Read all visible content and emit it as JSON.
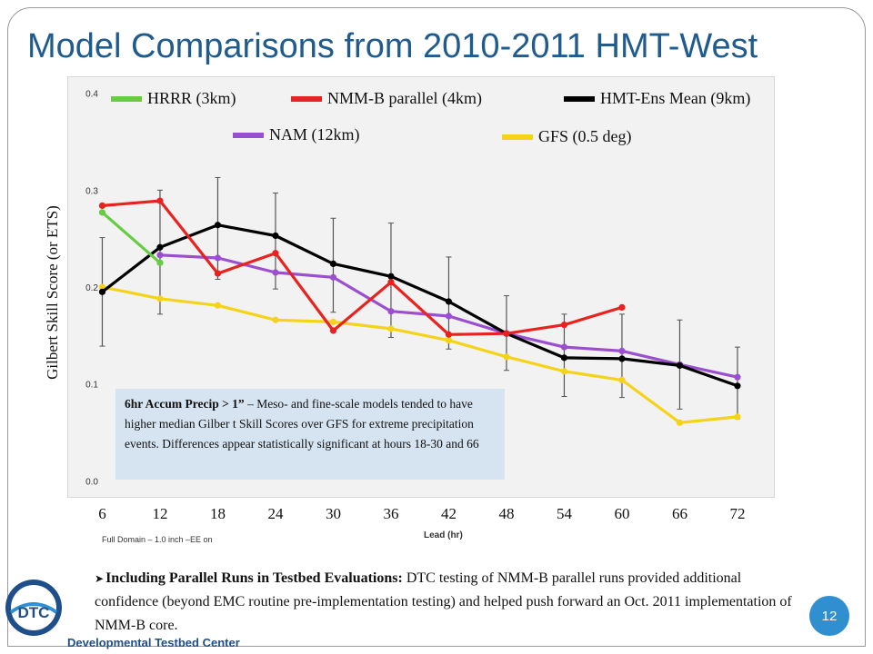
{
  "slide": {
    "title": "Model Comparisons from 2010-2011 HMT-West",
    "page_number": "12",
    "logo_text": "DTC",
    "logo_caption": "Developmental Testbed Center",
    "bullet_heading": "Including Parallel Runs in Testbed Evaluations:",
    "bullet_body": "DTC testing of NMM-B parallel runs provided additional confidence (beyond EMC routine pre-implementation testing) and helped push forward an Oct. 2011 implementation of NMM-B core.",
    "bullet_marker": "➤"
  },
  "chart_data": {
    "type": "line",
    "title": "",
    "xlabel": "Lead (hr)",
    "ylabel": "Gilbert Skill Score (or ETS)",
    "subtitle": "Full Domain – 1.0 inch –EE on",
    "x": [
      6,
      12,
      18,
      24,
      30,
      36,
      42,
      48,
      54,
      60,
      66,
      72
    ],
    "xlim": [
      3.5,
      75.5
    ],
    "ylim": [
      -0.01,
      0.41
    ],
    "yticks": [
      "0.0",
      "0.1",
      "0.2",
      "0.3",
      "0.4"
    ],
    "xtick_labels": [
      "6",
      "12",
      "18",
      "24",
      "30",
      "36",
      "42",
      "48",
      "54",
      "60",
      "66",
      "72"
    ],
    "legend_placement": "top",
    "series": [
      {
        "name": "HRRR (3km)",
        "color": "#66cc44",
        "x": [
          6,
          12
        ],
        "values": [
          0.277,
          0.225
        ]
      },
      {
        "name": "NMM-B parallel (4km)",
        "color": "#e8231f",
        "x": [
          6,
          12,
          18,
          24,
          30,
          36,
          42,
          48,
          54,
          60
        ],
        "values": [
          0.284,
          0.289,
          0.214,
          0.235,
          0.155,
          0.205,
          0.151,
          0.152,
          0.161,
          0.179
        ]
      },
      {
        "name": "HMT-Ens Mean (9km)",
        "color": "#000000",
        "x": [
          6,
          12,
          18,
          24,
          30,
          36,
          42,
          48,
          54,
          60,
          66,
          72
        ],
        "values": [
          0.195,
          0.241,
          0.264,
          0.253,
          0.224,
          0.211,
          0.185,
          0.152,
          0.127,
          0.126,
          0.119,
          0.098
        ],
        "error_low": [
          0.139,
          0.172,
          0.208,
          0.198,
          0.174,
          0.148,
          0.136,
          0.114,
          0.087,
          0.086,
          0.074,
          0.064
        ],
        "error_high": [
          0.251,
          0.3,
          0.313,
          0.297,
          0.271,
          0.266,
          0.231,
          0.191,
          0.172,
          0.172,
          0.166,
          0.138
        ]
      },
      {
        "name": "NAM (12km)",
        "color": "#9b4fcf",
        "x": [
          12,
          18,
          24,
          30,
          36,
          42,
          48,
          54,
          60,
          66,
          72
        ],
        "values": [
          0.233,
          0.23,
          0.215,
          0.21,
          0.175,
          0.17,
          0.152,
          0.138,
          0.134,
          0.12,
          0.107
        ]
      },
      {
        "name": "GFS (0.5 deg)",
        "color": "#f5d318",
        "x": [
          6,
          12,
          18,
          24,
          30,
          36,
          42,
          48,
          54,
          60,
          66,
          72
        ],
        "values": [
          0.2,
          0.188,
          0.181,
          0.166,
          0.164,
          0.157,
          0.145,
          0.128,
          0.113,
          0.104,
          0.06,
          0.066
        ]
      }
    ],
    "legend": [
      {
        "name": "HRRR (3km)",
        "color": "#66cc44"
      },
      {
        "name": "NMM-B parallel (4km)",
        "color": "#e8231f"
      },
      {
        "name": "HMT-Ens Mean (9km)",
        "color": "#000000"
      },
      {
        "name": "NAM (12km)",
        "color": "#9b4fcf"
      },
      {
        "name": "GFS (0.5 deg)",
        "color": "#f5d318"
      }
    ],
    "annotation": {
      "bold": "6hr Accum Precip > 1”",
      "text": " – Meso- and fine-scale models tended to have higher median Gilber t Skill Scores over GFS for extreme precipitation events.  Differences appear statistically significant at hours 18-30 and 66"
    }
  }
}
